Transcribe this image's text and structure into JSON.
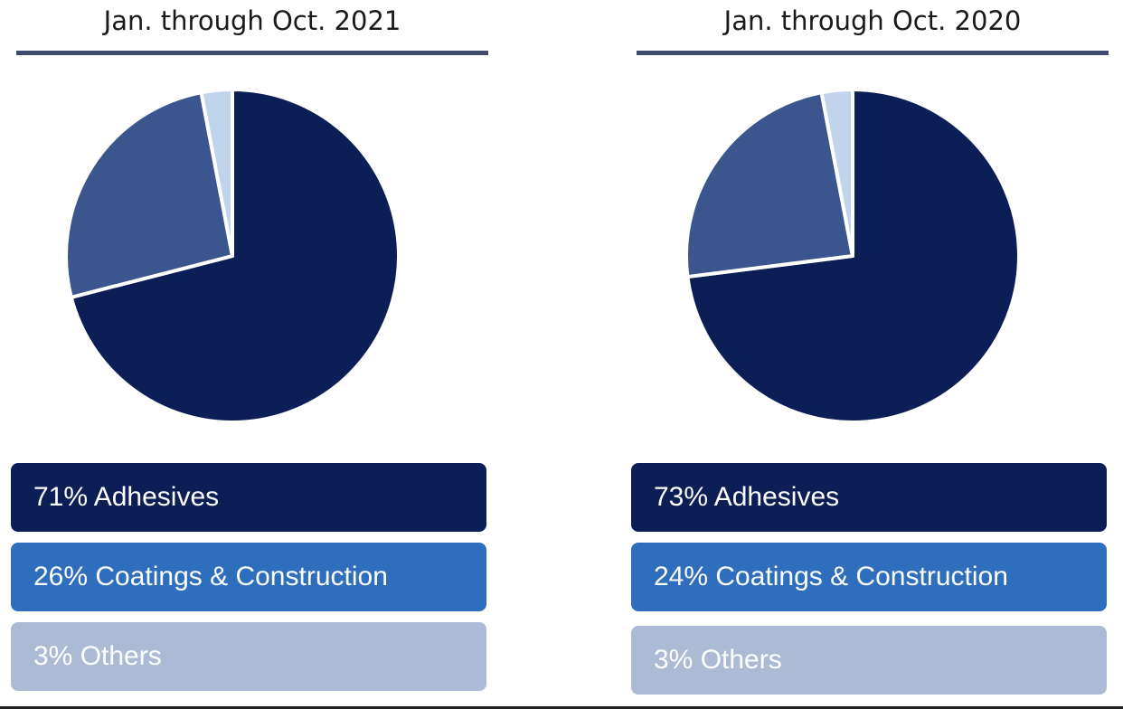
{
  "colors": {
    "adhesives": "#0b1e56",
    "coatings_slice": "#3b568e",
    "others_slice": "#c2d4ec",
    "coatings_box": "#2f6ebd",
    "others_box": "#adbad6",
    "title_rule": "#404a6e"
  },
  "chart_data": [
    {
      "type": "pie",
      "title": "Jan. through Oct. 2021",
      "slices": [
        {
          "label": "Adhesives",
          "value": 71,
          "text": "71% Adhesives"
        },
        {
          "label": "Coatings & Construction",
          "value": 26,
          "text": "26% Coatings & Construction"
        },
        {
          "label": "Others",
          "value": 3,
          "text": "3% Others"
        }
      ]
    },
    {
      "type": "pie",
      "title": "Jan. through Oct. 2020",
      "slices": [
        {
          "label": "Adhesives",
          "value": 73,
          "text": "73% Adhesives"
        },
        {
          "label": "Coatings & Construction",
          "value": 24,
          "text": "24% Coatings & Construction"
        },
        {
          "label": "Others",
          "value": 3,
          "text": "3% Others"
        }
      ]
    }
  ]
}
